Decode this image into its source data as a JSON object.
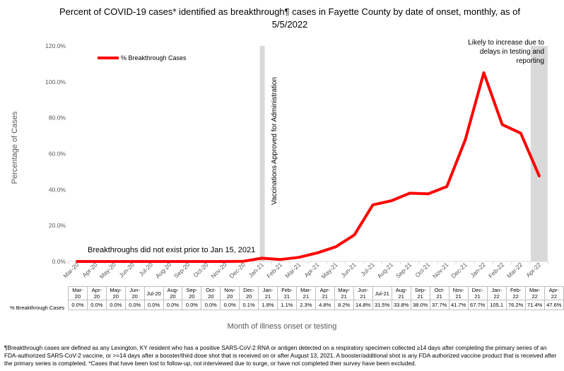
{
  "title": "Percent of COVID-19 cases* identified as breakthrough¶ cases in Fayette County by date of onset, monthly, as of 5/5/2022",
  "chart_data": {
    "type": "line",
    "title": "Percent of COVID-19 cases* identified as breakthrough¶ cases in Fayette County by date of onset, monthly, as of 5/5/2022",
    "xlabel": "Month of illness onset or testing",
    "ylabel": "Percentage of Cases",
    "ylim": [
      0,
      120
    ],
    "yticks": [
      "0.0%",
      "20.0%",
      "40.0%",
      "60.0%",
      "80.0%",
      "100.0%",
      "120.0%"
    ],
    "grid": false,
    "legend_position": "top-left",
    "categories": [
      "Mar-20",
      "Apr-20",
      "May-20",
      "Jun-20",
      "Jul-20",
      "Aug-20",
      "Sep-20",
      "Oct-20",
      "Nov-20",
      "Dec-20",
      "Jan-21",
      "Feb-21",
      "Mar-21",
      "Apr-21",
      "May-21",
      "Jun-21",
      "Jul-21",
      "Aug-21",
      "Sep-21",
      "Oct-21",
      "Nov-21",
      "Dec-21",
      "Jan-22",
      "Feb-22",
      "Mar-22",
      "Apr-22"
    ],
    "table_categories": [
      [
        "Mar-",
        "20"
      ],
      [
        "Apr-",
        "20"
      ],
      [
        "May-",
        "20"
      ],
      [
        "Jun-",
        "20"
      ],
      [
        "Jul-20",
        ""
      ],
      [
        "Aug-",
        "20"
      ],
      [
        "Sep-",
        "20"
      ],
      [
        "Oct-",
        "20"
      ],
      [
        "Nov-",
        "20"
      ],
      [
        "Dec-",
        "20"
      ],
      [
        "Jan-",
        "21"
      ],
      [
        "Feb-",
        "21"
      ],
      [
        "Mar-",
        "21"
      ],
      [
        "Apr-",
        "21"
      ],
      [
        "May-",
        "21"
      ],
      [
        "Jun-",
        "21"
      ],
      [
        "Jul-21",
        ""
      ],
      [
        "Aug-",
        "21"
      ],
      [
        "Sep-",
        "21"
      ],
      [
        "Oct-",
        "21"
      ],
      [
        "Nov-",
        "21"
      ],
      [
        "Dec-",
        "21"
      ],
      [
        "Jan-",
        "22"
      ],
      [
        "Feb-",
        "22"
      ],
      [
        "Mar-",
        "22"
      ],
      [
        "Apr-",
        "22"
      ]
    ],
    "series": [
      {
        "name": "% Breakthrough Cases",
        "color": "#ff0000",
        "values": [
          0.0,
          0.0,
          0.0,
          0.0,
          0.0,
          0.0,
          0.0,
          0.0,
          0.0,
          0.1,
          1.8,
          1.1,
          2.3,
          4.8,
          8.2,
          14.8,
          31.5,
          33.8,
          38.0,
          37.7,
          41.7,
          67.7,
          105.1,
          76.2,
          71.4,
          47.6
        ],
        "labels": [
          "0.0%",
          "0.0%",
          "0.0%",
          "0.0%",
          "0.0%",
          "0.0%",
          "0.0%",
          "0.0%",
          "0.0%",
          "0.1%",
          "1.8%",
          "1.1%",
          "2.3%",
          "4.8%",
          "8.2%",
          "14.8%",
          "31.5%",
          "33.8%",
          "38.0%",
          "37.7%",
          "41.7%",
          "67.7%",
          "105.1",
          "76.2%",
          "71.4%",
          "47.6%"
        ]
      }
    ],
    "annotations": {
      "vaccination_category": "Jan-21",
      "vaccination_label": "Vaccinations Approved for Administration",
      "future_category": "Apr-22",
      "future_label": "Likely to increase due to delays in testing and reporting",
      "no_breakthrough_label": "Breakthroughs did not exist prior to Jan 15, 2021"
    }
  },
  "footnote": "¶Breakthrough cases are defined as any Lexington, KY resident who has a positive SARS-CoV-2 RNA or antigen detected on a respiratory specimen collected ≥14 days after completing the primary series of an FDA-authorized SARS-CoV-2 vaccine, or >=14 days after a booster/third dose shot that is received on or after August 13, 2021.  A booster/additional shot is any FDA authorized vaccine product that is received after the primary series is completed.  *Cases that have been lost to follow-up, not interviewed due to surge, or have not completed their survey have been excluded."
}
